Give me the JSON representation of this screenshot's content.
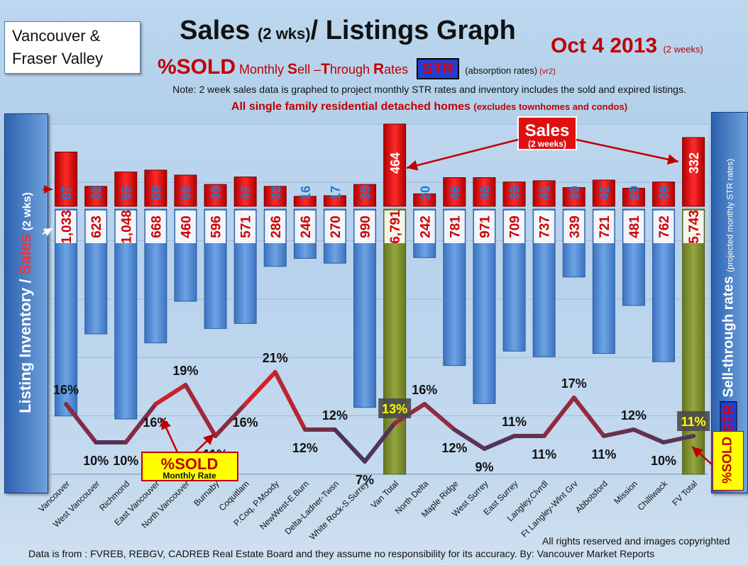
{
  "header": {
    "region_line1": "Vancouver &",
    "region_line2": "Fraser Valley",
    "title_main": "Sales ",
    "title_small": "(2 wks)",
    "title_end": "/ Listings Graph",
    "date": "Oct 4 2013",
    "date_small": "(2 weeks)",
    "subtitle_pct": "%SOLD",
    "subtitle_s1": " Monthly ",
    "subtitle_s2": "S",
    "subtitle_s3": "ell –",
    "subtitle_s4": "T",
    "subtitle_s5": "hrough ",
    "subtitle_s6": "R",
    "subtitle_s7": "ates",
    "subtitle_str": "STR",
    "subtitle_note": "(absorption rates)",
    "subtitle_vr": " (vr2)",
    "note": "Note: 2 week sales data is graphed to project monthly STR rates and inventory includes the sold and expired listings.",
    "note2_main": "All single family residential detached homes ",
    "note2_small": "(excludes townhomes and condos)"
  },
  "side_labels": {
    "left_a": "Listing Inventory / ",
    "left_b": "Sales",
    "left_c": " (2 wks)",
    "right_str": "STR",
    "right_a": " Sell-through rates ",
    "right_small": "(projected monthly STR rates)",
    "pct_box": "%SOLD"
  },
  "callouts": {
    "sales_title": "Sales",
    "sales_sub": "(2 weeks)",
    "sold_title": "%SOLD",
    "sold_sub": "Monthly Rate"
  },
  "footer": {
    "rights": "All rights reserved and  images copyrighted",
    "source": "Data is  from : FVREB, REBGV, CADREB Real Estate Board and they assume no responsibility  for its accuracy. By: Vancouver Market Reports"
  },
  "colors": {
    "inventory_bar": "#4d86d0",
    "total_bar": "#7b8f2f",
    "sales_bar": "#e01010",
    "sales_text": "#1f78d1",
    "line_high": "#ff1a1a",
    "line_low": "#243a66"
  },
  "chart_data": {
    "type": "bar",
    "categories": [
      "Vancouver",
      "West Vancouver",
      "Richmond",
      "East Vancouver",
      "North Vancouver",
      "Burnaby",
      "Coquitlam",
      "P.Coq, P.Moody",
      "NewWest-E.Burn",
      "Delta-Ladner-Twsn",
      "White Rock-S.Surrey",
      "Van Total",
      "North Delta",
      "Maple Ridge",
      "West Surrey",
      "East Surrey",
      "Langley,Clvrdl",
      "Ft Langley-Wlnt Grv",
      "Abbotsford",
      "Mission",
      "Chilliwack",
      "FV Total"
    ],
    "series": [
      {
        "name": "Listing Inventory",
        "values": [
          1033,
          623,
          1048,
          668,
          460,
          596,
          571,
          286,
          246,
          270,
          990,
          6791,
          242,
          781,
          971,
          709,
          737,
          339,
          721,
          481,
          762,
          5743
        ],
        "labels": [
          "1,033",
          "623",
          "1,048",
          "668",
          "460",
          "596",
          "571",
          "286",
          "246",
          "270",
          "990",
          "6,791",
          "242",
          "781",
          "971",
          "709",
          "737",
          "339",
          "721",
          "481",
          "762",
          "5,743"
        ]
      },
      {
        "name": "Sales",
        "values": [
          87,
          32,
          55,
          58,
          50,
          35,
          47,
          32,
          16,
          17,
          35,
          464,
          20,
          46,
          46,
          39,
          41,
          30,
          42,
          29,
          39,
          332
        ]
      },
      {
        "name": "%SOLD",
        "values": [
          16,
          10,
          10,
          16,
          19,
          11,
          16,
          21,
          12,
          12,
          7,
          13,
          16,
          12,
          9,
          11,
          11,
          17,
          11,
          12,
          10,
          11
        ]
      }
    ],
    "totals": [
      "Van Total",
      "FV Total"
    ],
    "grid": true
  }
}
